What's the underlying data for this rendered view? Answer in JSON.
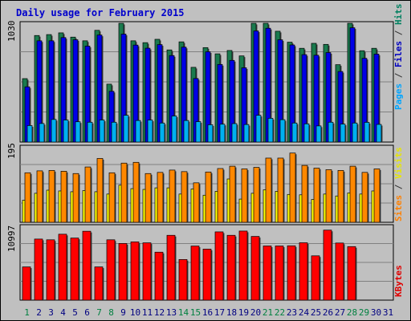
{
  "chart_data": {
    "type": "bar",
    "title": "Daily usage for February 2015",
    "x": [
      "1",
      "2",
      "3",
      "4",
      "5",
      "6",
      "7",
      "8",
      "9",
      "10",
      "11",
      "12",
      "13",
      "14",
      "15",
      "16",
      "17",
      "18",
      "19",
      "20",
      "21",
      "22",
      "23",
      "24",
      "25",
      "26",
      "27",
      "28",
      "29",
      "30",
      "31"
    ],
    "weekend_days": [
      1,
      7,
      8,
      14,
      15,
      21,
      22,
      28,
      29
    ],
    "panels": {
      "top": {
        "max_label": "1030",
        "ylim": [
          0,
          1030
        ],
        "legend": [
          {
            "text": "Pages",
            "color": "#00a5ff"
          },
          {
            "text": " / ",
            "color": "#333333"
          },
          {
            "text": "Files",
            "color": "#0000c0"
          },
          {
            "text": " / ",
            "color": "#333333"
          },
          {
            "text": "Hits",
            "color": "#008060"
          }
        ],
        "series": [
          {
            "name": "Hits",
            "color": "#1a7a4e",
            "values": [
              550,
              924,
              932,
              947,
              910,
              878,
              969,
              502,
              1030,
              878,
              862,
              891,
              799,
              869,
              648,
              819,
              765,
              794,
              747,
              1030,
              1030,
              961,
              866,
              813,
              856,
              847,
              671,
              1030,
              792,
              813,
              null
            ]
          },
          {
            "name": "Files",
            "color": "#0000e6",
            "values": [
              479,
              878,
              878,
              906,
              887,
              832,
              928,
              440,
              936,
              841,
              814,
              845,
              750,
              823,
              551,
              783,
              673,
              708,
              644,
              964,
              987,
              887,
              842,
              758,
              753,
              776,
              612,
              991,
              726,
              763,
              null
            ]
          },
          {
            "name": "Pages",
            "color": "#00b0f0",
            "values": [
              143,
              161,
              196,
              191,
              176,
              172,
              191,
              172,
              232,
              187,
              191,
              165,
              226,
              187,
              177,
              150,
              155,
              160,
              152,
              232,
              206,
              194,
              165,
              158,
              140,
              172,
              156,
              165,
              171,
              153,
              null
            ]
          }
        ]
      },
      "middle": {
        "max_label": "195",
        "ylim": [
          0,
          195
        ],
        "legend": [
          {
            "text": "Sites",
            "color": "#ff8000"
          },
          {
            "text": " / ",
            "color": "#333333"
          },
          {
            "text": "Visits",
            "color": "#e6e600"
          }
        ],
        "series": [
          {
            "name": "Visits",
            "color": "#ffff00",
            "values": [
              57,
              75,
              83,
              81,
              79,
              82,
              79,
              73,
              96,
              87,
              85,
              89,
              89,
              73,
              86,
              70,
              80,
              112,
              60,
              75,
              84,
              80,
              72,
              71,
              59,
              73,
              68,
              76,
              73,
              81,
              null
            ]
          },
          {
            "name": "Sites",
            "color": "#ff8800",
            "values": [
              128,
              133,
              134,
              132,
              126,
              143,
              165,
              128,
              153,
              155,
              126,
              129,
              135,
              131,
              102,
              130,
              139,
              145,
              138,
              142,
              166,
              166,
              179,
              147,
              140,
              136,
              134,
              145,
              129,
              138,
              null
            ]
          }
        ]
      },
      "bottom": {
        "max_label": "10997",
        "ylim": [
          0,
          10997
        ],
        "legend": [
          {
            "text": "KBytes",
            "color": "#e00000"
          }
        ],
        "series": [
          {
            "name": "KBytes",
            "color": "#ff0000",
            "values": [
              4950,
              9098,
              8988,
              9820,
              9247,
              10262,
              4950,
              8988,
              8438,
              8677,
              8538,
              7145,
              9655,
              6051,
              8056,
              7603,
              10168,
              9656,
              10290,
              9490,
              8069,
              8069,
              8096,
              8549,
              6600,
              10430,
              8509,
              7974,
              null,
              null,
              null
            ]
          }
        ]
      }
    }
  }
}
